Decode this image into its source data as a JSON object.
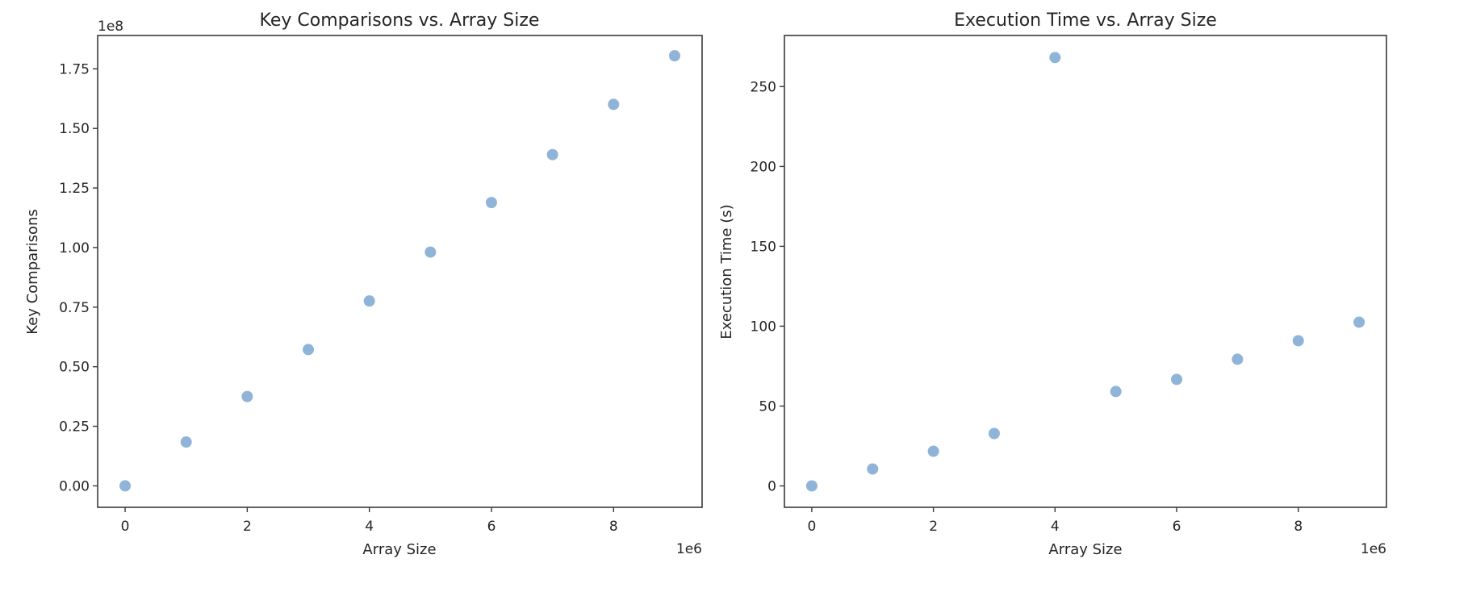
{
  "figure": {
    "marker_color": "#6a9bcb",
    "marker_alpha": 0.75,
    "axis_color": "#3a3a3a",
    "text_color": "#262626"
  },
  "chart_data": [
    {
      "type": "scatter",
      "title": "Key Comparisons vs. Array Size",
      "xlabel": "Array Size",
      "ylabel": "Key Comparisons",
      "x_offset_label": "1e6",
      "y_offset_label": "1e8",
      "x_scale": 1000000,
      "y_scale": 100000000,
      "x": [
        0,
        1000000,
        2000000,
        3000000,
        4000000,
        5000000,
        6000000,
        7000000,
        8000000,
        9000000
      ],
      "y": [
        0,
        18400000,
        37500000,
        57200000,
        77600000,
        98100000,
        118900000,
        139000000,
        160100000,
        180500000
      ],
      "xticks": [
        0,
        2,
        4,
        6,
        8
      ],
      "xtick_labels": [
        "0",
        "2",
        "4",
        "6",
        "8"
      ],
      "yticks": [
        0,
        0.25,
        0.5,
        0.75,
        1.0,
        1.25,
        1.5,
        1.75
      ],
      "ytick_labels": [
        "0.00",
        "0.25",
        "0.50",
        "0.75",
        "1.00",
        "1.25",
        "1.50",
        "1.75"
      ],
      "xlim": [
        -0.45,
        9.45
      ],
      "ylim": [
        -0.09,
        1.89
      ],
      "grid": false,
      "legend": null
    },
    {
      "type": "scatter",
      "title": "Execution Time vs. Array Size",
      "xlabel": "Array Size",
      "ylabel": "Execution Time (s)",
      "x_offset_label": "1e6",
      "y_offset_label": "",
      "x_scale": 1000000,
      "y_scale": 1,
      "x": [
        0,
        1000000,
        2000000,
        3000000,
        4000000,
        5000000,
        6000000,
        7000000,
        8000000,
        9000000
      ],
      "y": [
        0,
        10.6,
        21.7,
        32.8,
        268.2,
        59.1,
        66.7,
        79.3,
        90.9,
        102.5
      ],
      "xticks": [
        0,
        2,
        4,
        6,
        8
      ],
      "xtick_labels": [
        "0",
        "2",
        "4",
        "6",
        "8"
      ],
      "yticks": [
        0,
        50,
        100,
        150,
        200,
        250
      ],
      "ytick_labels": [
        "0",
        "50",
        "100",
        "150",
        "200",
        "250"
      ],
      "xlim": [
        -0.45,
        9.45
      ],
      "ylim": [
        -13.4,
        282
      ],
      "grid": false,
      "legend": null
    }
  ]
}
